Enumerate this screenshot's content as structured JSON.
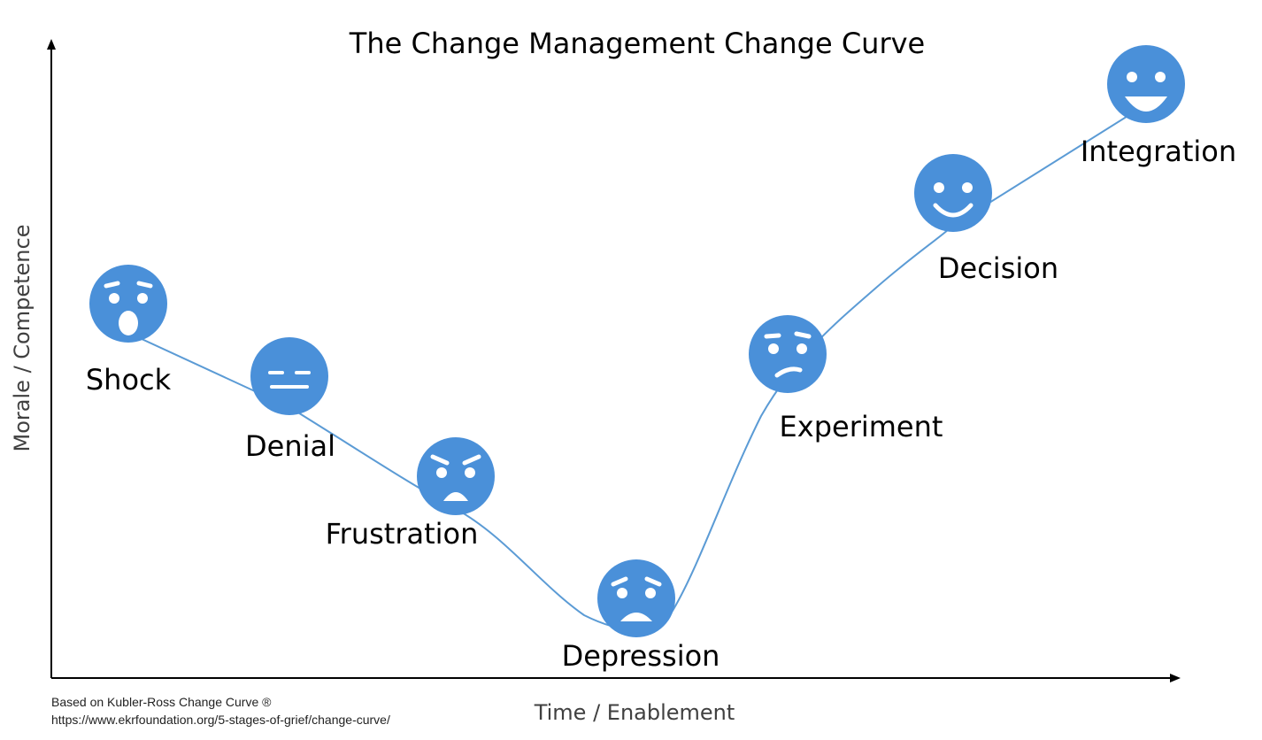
{
  "title": "The Change Management Change Curve",
  "x_axis_label": "Time / Enablement",
  "y_axis_label": "Morale / Competence",
  "source": {
    "line1": "Based on Kubler-Ross Change Curve ®",
    "line2": "https://www.ekrfoundation.org/5-stages-of-grief/change-curve/"
  },
  "colors": {
    "face": "#4a90d9",
    "curve": "#5b9bd5",
    "axis": "#000000",
    "feature": "#ffffff"
  },
  "stages": [
    {
      "key": "shock",
      "label": "Shock",
      "expression": "shocked-face-icon"
    },
    {
      "key": "denial",
      "label": "Denial",
      "expression": "neutral-face-icon"
    },
    {
      "key": "frustration",
      "label": "Frustration",
      "expression": "angry-face-icon"
    },
    {
      "key": "depression",
      "label": "Depression",
      "expression": "sad-face-icon"
    },
    {
      "key": "experiment",
      "label": "Experiment",
      "expression": "confused-face-icon"
    },
    {
      "key": "decision",
      "label": "Decision",
      "expression": "smiling-face-icon"
    },
    {
      "key": "integration",
      "label": "Integration",
      "expression": "grinning-face-icon"
    }
  ]
}
